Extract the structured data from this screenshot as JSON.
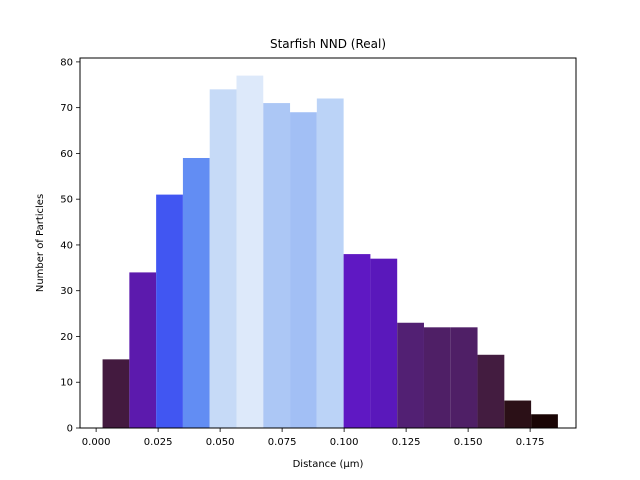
{
  "chart_data": {
    "type": "bar",
    "title": "Starfish NND (Real)",
    "xlabel": "Distance (µm)",
    "ylabel": "Number of Particles",
    "xlim": [
      -0.0065,
      0.1935
    ],
    "ylim": [
      0,
      80.85
    ],
    "xticks": [
      0.0,
      0.025,
      0.05,
      0.075,
      0.1,
      0.125,
      0.15,
      0.175
    ],
    "xtick_labels": [
      "0.000",
      "0.025",
      "0.050",
      "0.075",
      "0.100",
      "0.125",
      "0.150",
      "0.175"
    ],
    "yticks": [
      0,
      10,
      20,
      30,
      40,
      50,
      60,
      70,
      80
    ],
    "ytick_labels": [
      "0",
      "10",
      "20",
      "30",
      "40",
      "50",
      "60",
      "70",
      "80"
    ],
    "grid": false,
    "bins": [
      {
        "start": 0.0026,
        "end": 0.0134,
        "count": 15,
        "color": "#431a3f"
      },
      {
        "start": 0.0134,
        "end": 0.0242,
        "count": 34,
        "color": "#5c1aad"
      },
      {
        "start": 0.0242,
        "end": 0.035,
        "count": 51,
        "color": "#4156f2"
      },
      {
        "start": 0.035,
        "end": 0.0458,
        "count": 59,
        "color": "#628df3"
      },
      {
        "start": 0.0458,
        "end": 0.0566,
        "count": 74,
        "color": "#c6daf7"
      },
      {
        "start": 0.0566,
        "end": 0.0674,
        "count": 77,
        "color": "#dde9fa"
      },
      {
        "start": 0.0674,
        "end": 0.0782,
        "count": 71,
        "color": "#acc7f5"
      },
      {
        "start": 0.0782,
        "end": 0.089,
        "count": 69,
        "color": "#a2bff5"
      },
      {
        "start": 0.089,
        "end": 0.0998,
        "count": 72,
        "color": "#bbd3f7"
      },
      {
        "start": 0.0998,
        "end": 0.1106,
        "count": 38,
        "color": "#5f18c3"
      },
      {
        "start": 0.1106,
        "end": 0.1214,
        "count": 37,
        "color": "#5a18bb"
      },
      {
        "start": 0.1214,
        "end": 0.1322,
        "count": 23,
        "color": "#522073"
      },
      {
        "start": 0.1322,
        "end": 0.143,
        "count": 22,
        "color": "#4f1f66"
      },
      {
        "start": 0.143,
        "end": 0.1538,
        "count": 22,
        "color": "#4f1f66"
      },
      {
        "start": 0.1538,
        "end": 0.1646,
        "count": 16,
        "color": "#431c40"
      },
      {
        "start": 0.1646,
        "end": 0.1754,
        "count": 6,
        "color": "#2b1017"
      },
      {
        "start": 0.1754,
        "end": 0.1862,
        "count": 3,
        "color": "#1a0505"
      }
    ]
  }
}
